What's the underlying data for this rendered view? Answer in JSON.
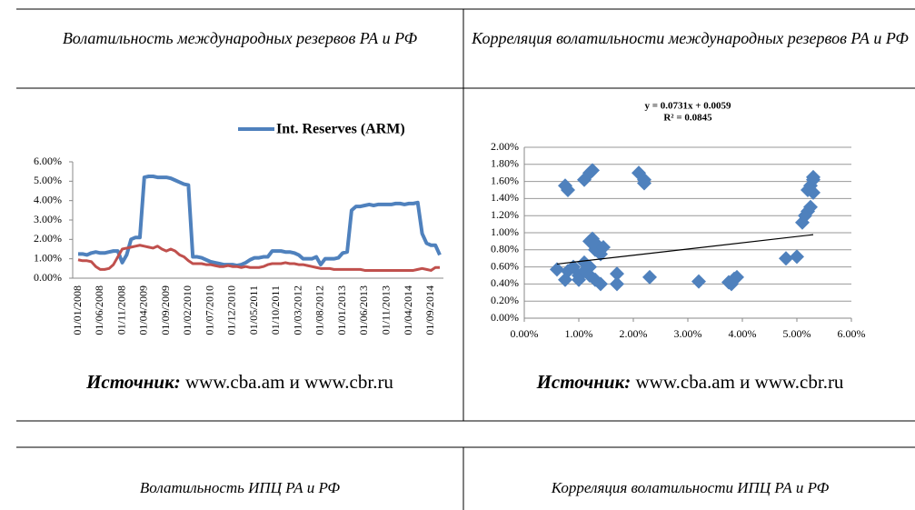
{
  "table1": {
    "headers": [
      "Волатильность международных резервов РА и РФ",
      "Корреляция волатильности международных резервов РА и РФ"
    ],
    "sources": [
      {
        "label": "Источник:",
        "text": "www.cba.am и www.cbr.ru"
      },
      {
        "label": "Источник:",
        "text": "www.cba.am и www.cbr.ru"
      }
    ]
  },
  "chart_data": [
    {
      "type": "line",
      "categories": [
        "01/01/2008",
        null,
        null,
        null,
        null,
        "01/06/2008",
        null,
        null,
        null,
        null,
        "01/11/2008",
        null,
        null,
        null,
        null,
        "01/04/2009",
        null,
        null,
        null,
        null,
        "01/09/2009",
        null,
        null,
        null,
        null,
        "01/02/2010",
        null,
        null,
        null,
        null,
        "01/07/2010",
        null,
        null,
        null,
        null,
        "01/12/2010",
        null,
        null,
        null,
        null,
        "01/05/2011",
        null,
        null,
        null,
        null,
        "01/10/2011",
        null,
        null,
        null,
        null,
        "01/03/2012",
        null,
        null,
        null,
        null,
        "01/08/2012",
        null,
        null,
        null,
        null,
        "01/01/2013",
        null,
        null,
        null,
        null,
        "01/06/2013",
        null,
        null,
        null,
        null,
        "01/11/2013",
        null,
        null,
        null,
        null,
        "01/04/2014",
        null,
        null,
        null,
        null,
        "01/09/2014",
        null,
        null
      ],
      "series": [
        {
          "name": "Int. Reserves (ARM)",
          "color": "#4f81bd",
          "values": [
            1.25,
            1.25,
            1.2,
            1.3,
            1.35,
            1.3,
            1.3,
            1.35,
            1.4,
            1.4,
            0.8,
            1.2,
            2.0,
            2.1,
            2.1,
            5.2,
            5.25,
            5.25,
            5.2,
            5.2,
            5.2,
            5.15,
            5.05,
            4.95,
            4.85,
            4.8,
            1.1,
            1.1,
            1.05,
            0.95,
            0.85,
            0.8,
            0.75,
            0.7,
            0.7,
            0.7,
            0.65,
            0.7,
            0.8,
            0.95,
            1.05,
            1.05,
            1.1,
            1.1,
            1.4,
            1.4,
            1.4,
            1.35,
            1.35,
            1.3,
            1.2,
            1.0,
            1.0,
            1.0,
            1.1,
            0.7,
            1.0,
            1.0,
            1.0,
            1.05,
            1.3,
            1.35,
            3.5,
            3.7,
            3.7,
            3.75,
            3.8,
            3.75,
            3.8,
            3.8,
            3.8,
            3.8,
            3.85,
            3.85,
            3.8,
            3.85,
            3.85,
            3.9,
            2.3,
            1.8,
            1.7,
            1.7,
            1.2
          ]
        },
        {
          "color": "#c0504d",
          "values": [
            0.95,
            0.9,
            0.9,
            0.85,
            0.6,
            0.45,
            0.45,
            0.5,
            0.7,
            1.1,
            1.5,
            1.55,
            1.6,
            1.65,
            1.7,
            1.65,
            1.6,
            1.55,
            1.65,
            1.5,
            1.4,
            1.5,
            1.4,
            1.2,
            1.1,
            0.9,
            0.75,
            0.75,
            0.75,
            0.7,
            0.7,
            0.65,
            0.6,
            0.6,
            0.65,
            0.6,
            0.6,
            0.55,
            0.6,
            0.55,
            0.55,
            0.55,
            0.6,
            0.7,
            0.75,
            0.75,
            0.75,
            0.8,
            0.75,
            0.75,
            0.7,
            0.7,
            0.65,
            0.6,
            0.55,
            0.5,
            0.5,
            0.5,
            0.45,
            0.45,
            0.45,
            0.45,
            0.45,
            0.45,
            0.45,
            0.4,
            0.4,
            0.4,
            0.4,
            0.4,
            0.4,
            0.4,
            0.4,
            0.4,
            0.4,
            0.4,
            0.4,
            0.45,
            0.5,
            0.45,
            0.4,
            0.55,
            0.55
          ]
        }
      ],
      "ylim": [
        0,
        6
      ],
      "yticks": [
        {
          "value": 0,
          "label": "0.00%"
        },
        {
          "value": 1,
          "label": "1.00%"
        },
        {
          "value": 2,
          "label": "2.00%"
        },
        {
          "value": 3,
          "label": "3.00%"
        },
        {
          "value": 4,
          "label": "4.00%"
        },
        {
          "value": 5,
          "label": "5.00%"
        },
        {
          "value": 6,
          "label": "6.00%"
        }
      ],
      "legend": "top"
    },
    {
      "type": "scatter",
      "color": "#4f81bd",
      "x": [
        0.75,
        0.8,
        1.1,
        1.2,
        1.25,
        2.1,
        2.2,
        2.2,
        0.6,
        0.75,
        0.8,
        0.9,
        1.0,
        1.0,
        1.1,
        1.1,
        1.2,
        1.2,
        1.25,
        1.3,
        1.35,
        1.4,
        1.45,
        1.3,
        1.4,
        1.2,
        1.7,
        1.7,
        2.3,
        3.2,
        3.75,
        3.8,
        3.85,
        3.9,
        4.8,
        5.0,
        5.1,
        5.15,
        5.2,
        5.25,
        5.2,
        5.25,
        5.3,
        5.3,
        5.3
      ],
      "values": [
        1.55,
        1.5,
        1.62,
        1.7,
        1.73,
        1.7,
        1.62,
        1.58,
        0.57,
        0.45,
        0.55,
        0.6,
        0.5,
        0.45,
        0.65,
        0.55,
        0.6,
        0.9,
        0.93,
        0.8,
        0.85,
        0.75,
        0.83,
        0.45,
        0.4,
        0.5,
        0.52,
        0.4,
        0.48,
        0.43,
        0.42,
        0.4,
        0.46,
        0.48,
        0.7,
        0.72,
        1.12,
        1.2,
        1.25,
        1.3,
        1.5,
        1.55,
        1.62,
        1.65,
        1.47
      ],
      "trendline": {
        "equation": "y = 0.0731x + 0.0059",
        "r2": "R² = 0.0845",
        "slope": 0.0731,
        "intercept": 0.59
      },
      "xlim": [
        0,
        6
      ],
      "xticks": [
        {
          "value": 0,
          "label": "0.00%"
        },
        {
          "value": 1,
          "label": "1.00%"
        },
        {
          "value": 2,
          "label": "2.00%"
        },
        {
          "value": 3,
          "label": "3.00%"
        },
        {
          "value": 4,
          "label": "4.00%"
        },
        {
          "value": 5,
          "label": "5.00%"
        },
        {
          "value": 6,
          "label": "6.00%"
        }
      ],
      "ylim": [
        0,
        2
      ],
      "yticks": [
        {
          "value": 0,
          "label": "0.00%"
        },
        {
          "value": 0.2,
          "label": "0.20%"
        },
        {
          "value": 0.4,
          "label": "0.40%"
        },
        {
          "value": 0.6,
          "label": "0.60%"
        },
        {
          "value": 0.8,
          "label": "0.80%"
        },
        {
          "value": 1.0,
          "label": "1.00%"
        },
        {
          "value": 1.2,
          "label": "1.20%"
        },
        {
          "value": 1.4,
          "label": "1.40%"
        },
        {
          "value": 1.6,
          "label": "1.60%"
        },
        {
          "value": 1.8,
          "label": "1.80%"
        },
        {
          "value": 2.0,
          "label": "2.00%"
        }
      ],
      "grid": true
    }
  ],
  "table2": {
    "headers": [
      "Волатильность ИПЦ РА и РФ",
      "Корреляция волатильности ИПЦ РА и РФ"
    ]
  }
}
